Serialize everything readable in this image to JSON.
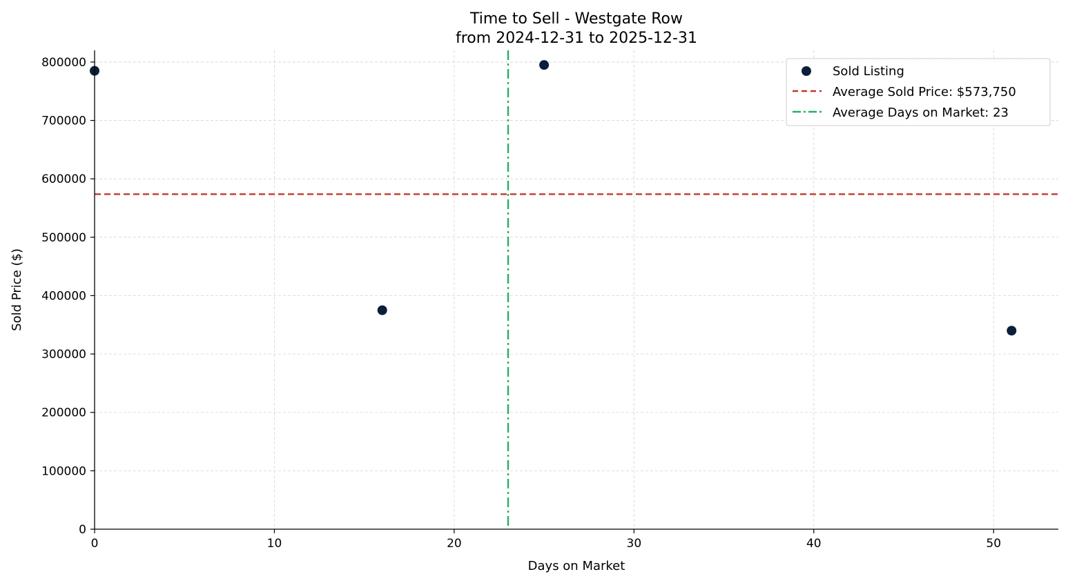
{
  "chart_data": {
    "type": "scatter",
    "title_line1": "Time to Sell - Westgate Row",
    "title_line2": "from 2024-12-31 to 2025-12-31",
    "xlabel": "Days on Market",
    "ylabel": "Sold Price ($)",
    "xlim": [
      0,
      53.6
    ],
    "ylim": [
      0,
      820000
    ],
    "x_ticks": [
      0,
      10,
      20,
      30,
      40,
      50
    ],
    "y_ticks": [
      0,
      100000,
      200000,
      300000,
      400000,
      500000,
      600000,
      700000,
      800000
    ],
    "grid": true,
    "legend_position": "top-right",
    "series": [
      {
        "name": "Sold Listing",
        "color": "#0b1f3a",
        "points": [
          {
            "x": 0,
            "y": 785000
          },
          {
            "x": 16,
            "y": 375000
          },
          {
            "x": 25,
            "y": 795000
          },
          {
            "x": 51,
            "y": 340000
          }
        ]
      }
    ],
    "reference_lines": [
      {
        "orientation": "horizontal",
        "value": 573750,
        "name": "Average Sold Price: $573,750",
        "color": "#c0392b",
        "style": "dashed"
      },
      {
        "orientation": "vertical",
        "value": 23,
        "name": "Average Days on Market: 23",
        "color": "#27ae60",
        "style": "dashdot"
      }
    ]
  }
}
